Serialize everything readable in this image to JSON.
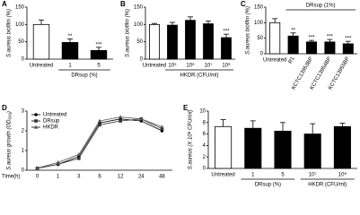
{
  "chart_data": [
    {
      "type": "bar",
      "label": "A",
      "ylabel": "S.aureus biofilm (%)",
      "xlabel": "DRsup (%)",
      "categories": [
        "Untreated",
        "1",
        "5"
      ],
      "values": [
        100,
        48,
        25
      ],
      "errors": [
        13,
        10,
        9
      ],
      "colors": [
        "#ffffff",
        "#000000",
        "#000000"
      ],
      "annotations": [
        null,
        "**",
        "***"
      ],
      "ylim": [
        0,
        150
      ],
      "yticks": [
        0,
        50,
        100,
        150
      ]
    },
    {
      "type": "bar",
      "label": "B",
      "ylabel": "S.aureus biofilm (%)",
      "xlabel": "HKDR (CFU/ml)",
      "categories": [
        "Untreated",
        "10⁵",
        "10⁶",
        "10⁷",
        "10⁸"
      ],
      "values": [
        100,
        98,
        112,
        102,
        62
      ],
      "errors": [
        3,
        8,
        10,
        8,
        10
      ],
      "colors": [
        "#ffffff",
        "#000000",
        "#000000",
        "#000000",
        "#000000"
      ],
      "annotations": [
        null,
        null,
        null,
        null,
        "***"
      ],
      "ylim": [
        0,
        150
      ],
      "yticks": [
        0,
        50,
        100,
        150
      ]
    },
    {
      "type": "bar",
      "label": "C",
      "ylabel": "S.aureus biofilm (%)",
      "header": "DRsup (1%)",
      "categories": [
        "Untreated",
        "R1",
        "KCTC13953BP",
        "KCTC13954BP",
        "KCTC13955BP"
      ],
      "values": [
        100,
        57,
        38,
        38,
        32
      ],
      "errors": [
        13,
        10,
        5,
        8,
        8
      ],
      "colors": [
        "#ffffff",
        "#000000",
        "#000000",
        "#000000",
        "#000000"
      ],
      "annotations": [
        null,
        "**",
        "***",
        "***",
        "***"
      ],
      "ylim": [
        0,
        150
      ],
      "yticks": [
        0,
        50,
        100,
        150
      ]
    },
    {
      "type": "line",
      "label": "D",
      "ylabel": "S.aureus growth (OD₆₀₀)",
      "xlabel": "Time(h)",
      "categories": [
        "0",
        "1",
        "3",
        "6",
        "12",
        "24",
        "48"
      ],
      "ylim": [
        0,
        3
      ],
      "yticks": [
        0,
        1,
        2,
        3
      ],
      "series": [
        {
          "name": "Untreated",
          "color": "#000000",
          "values": [
            0.1,
            0.3,
            0.7,
            2.4,
            2.6,
            2.5,
            2.0
          ]
        },
        {
          "name": "DRsup",
          "color": "#333333",
          "values": [
            0.1,
            0.3,
            0.6,
            2.3,
            2.5,
            2.6,
            2.1
          ]
        },
        {
          "name": "HKDR",
          "color": "#555555",
          "values": [
            0.1,
            0.4,
            0.8,
            2.5,
            2.7,
            2.6,
            2.2
          ]
        }
      ]
    },
    {
      "type": "bar",
      "label": "E",
      "ylabel": "S.aureus (X 10⁸ CFU/ml)",
      "xlabels": [
        "DRsup (%)",
        "HKDR (CFU/ml)"
      ],
      "categories": [
        "Untreated",
        "1",
        "5",
        "10⁷",
        "10⁸"
      ],
      "values": [
        7.3,
        7.0,
        6.5,
        6.0,
        7.3
      ],
      "errors": [
        1.2,
        1.3,
        1.5,
        1.8,
        0.6
      ],
      "colors": [
        "#ffffff",
        "#000000",
        "#000000",
        "#000000",
        "#000000"
      ],
      "ylim": [
        0,
        10
      ],
      "yticks": [
        0,
        2,
        4,
        6,
        8,
        10
      ]
    }
  ]
}
